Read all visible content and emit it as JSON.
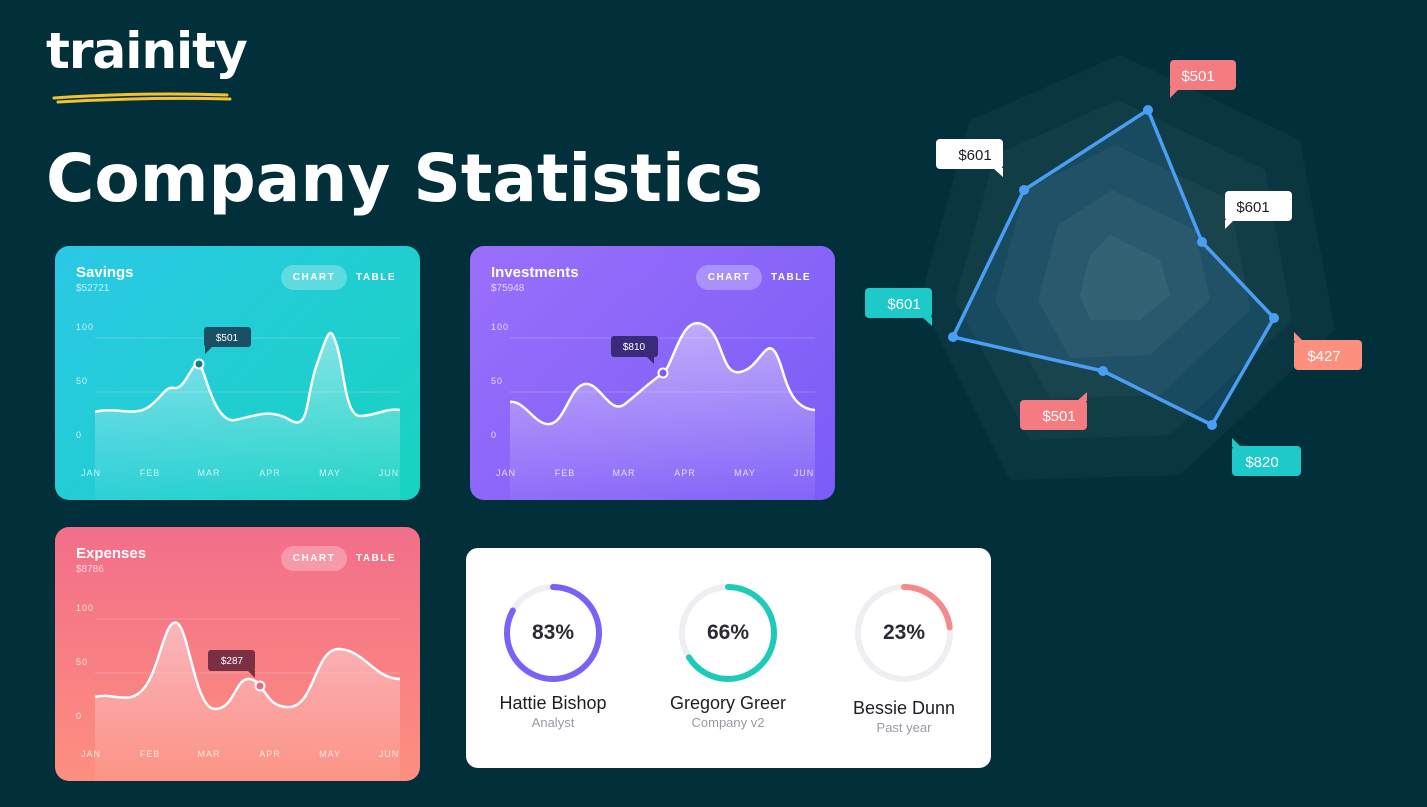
{
  "brand": {
    "logo_text": "trainity",
    "underline_color": "#f2c230"
  },
  "page": {
    "title": "Company Statistics",
    "background": "#02303a"
  },
  "cards": {
    "savings": {
      "title": "Savings",
      "subtitle": "$52721",
      "toggle": {
        "chart": "CHART",
        "table": "TABLE"
      },
      "y_ticks": [
        "100",
        "50",
        "0"
      ],
      "months": [
        "JAN",
        "FEB",
        "MAR",
        "APR",
        "MAY",
        "JUN"
      ],
      "tooltip": "$501",
      "gradient": [
        "#2bc8e6",
        "#17d3c0"
      ]
    },
    "investments": {
      "title": "Investments",
      "subtitle": "$75948",
      "toggle": {
        "chart": "CHART",
        "table": "TABLE"
      },
      "y_ticks": [
        "100",
        "50",
        "0"
      ],
      "months": [
        "JAN",
        "FEB",
        "MAR",
        "APR",
        "MAY",
        "JUN"
      ],
      "tooltip": "$810",
      "gradient": [
        "#9a6ffb",
        "#7a5cf6"
      ]
    },
    "expenses": {
      "title": "Expenses",
      "subtitle": "$8786",
      "toggle": {
        "chart": "CHART",
        "table": "TABLE"
      },
      "y_ticks": [
        "100",
        "50",
        "0"
      ],
      "months": [
        "JAN",
        "FEB",
        "MAR",
        "APR",
        "MAY",
        "JUN"
      ],
      "tooltip": "$287",
      "gradient": [
        "#f26e8a",
        "#fd8f7f"
      ]
    }
  },
  "people": [
    {
      "name": "Hattie Bishop",
      "role": "Analyst",
      "percent": "83%",
      "value": 0.83,
      "color": "#7b61f8"
    },
    {
      "name": "Gregory Greer",
      "role": "Company v2",
      "percent": "66%",
      "value": 0.66,
      "color": "#1dcbb8"
    },
    {
      "name": "Bessie Dunn",
      "role": "Past year",
      "percent": "23%",
      "value": 0.23,
      "color": "#f58a8a"
    }
  ],
  "radar": {
    "labels": [
      "$501",
      "$601",
      "$601",
      "$601",
      "$427",
      "$501",
      "$820"
    ],
    "line_color": "#4a9ff5",
    "label_colors": {
      "coral": "#f47b80",
      "teal": "#1ec9c9",
      "white": "#ffffff"
    }
  },
  "chart_data": [
    {
      "type": "area",
      "title": "Savings",
      "categories": [
        "JAN",
        "FEB",
        "MAR",
        "APR",
        "MAY",
        "JUN"
      ],
      "ylim": [
        0,
        100
      ],
      "series": [
        {
          "values": [
            38,
            42,
            72,
            30,
            95,
            38
          ]
        }
      ],
      "annotations": [
        "$501"
      ]
    },
    {
      "type": "area",
      "title": "Investments",
      "categories": [
        "JAN",
        "FEB",
        "MAR",
        "APR",
        "MAY",
        "JUN"
      ],
      "ylim": [
        0,
        100
      ],
      "series": [
        {
          "values": [
            36,
            48,
            58,
            110,
            62,
            30
          ]
        }
      ],
      "annotations": [
        "$810"
      ]
    },
    {
      "type": "area",
      "title": "Expenses",
      "categories": [
        "JAN",
        "FEB",
        "MAR",
        "APR",
        "MAY",
        "JUN"
      ],
      "ylim": [
        0,
        100
      ],
      "series": [
        {
          "values": [
            38,
            88,
            28,
            30,
            70,
            36
          ]
        }
      ],
      "annotations": [
        "$287"
      ]
    }
  ]
}
